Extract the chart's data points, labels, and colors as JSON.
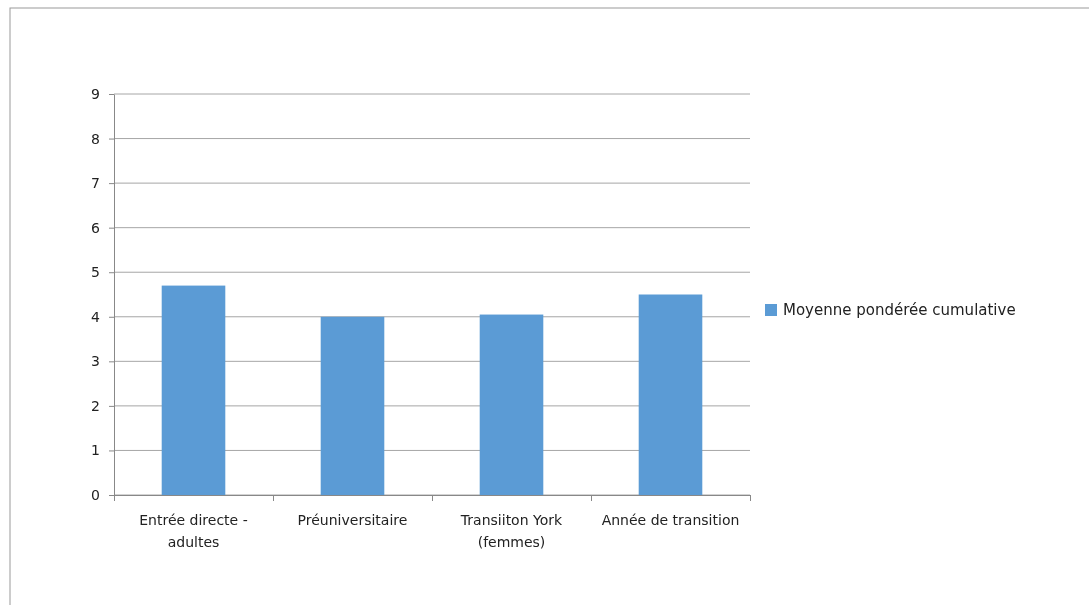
{
  "chart_data": {
    "type": "bar",
    "categories": [
      "Entrée directe - adultes",
      "Préuniversitaire",
      "Transiiton York (femmes)",
      "Année de transition"
    ],
    "series": [
      {
        "name": "Moyenne pondérée cumulative",
        "color": "#5b9bd5",
        "values": [
          4.7,
          4.0,
          4.05,
          4.5
        ]
      }
    ],
    "ylim": [
      0,
      9
    ],
    "yticks": [
      0,
      1,
      2,
      3,
      4,
      5,
      6,
      7,
      8,
      9
    ],
    "grid": "y",
    "legend": "right"
  }
}
